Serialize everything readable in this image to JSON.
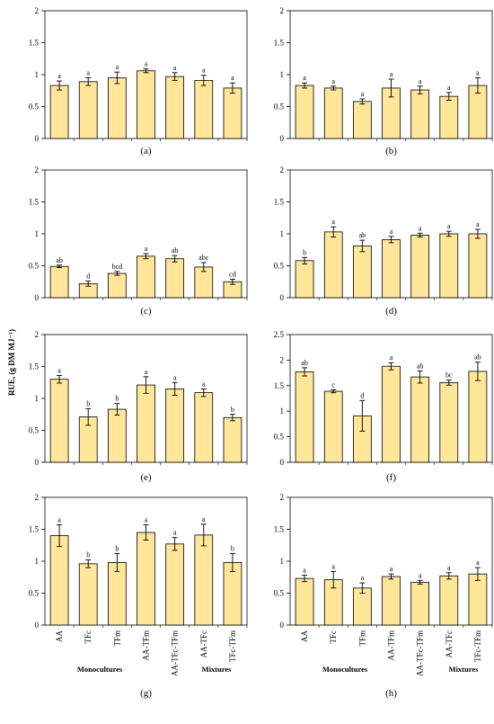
{
  "ylabel": "RUE, (g DM MJ⁻¹)",
  "group_labels": [
    "Monocultures",
    "Mixtures"
  ],
  "chart_data": [
    {
      "type": "bar",
      "panel": "(a)",
      "categories": [
        "AA",
        "TFc",
        "TFm",
        "AA-TFm",
        "AA-TFc-TFm",
        "AA-TFc",
        "TFc-TFm"
      ],
      "values": [
        0.83,
        0.89,
        0.95,
        1.06,
        0.97,
        0.91,
        0.79
      ],
      "errors": [
        0.07,
        0.06,
        0.09,
        0.03,
        0.06,
        0.08,
        0.08
      ],
      "letters": [
        "a",
        "a",
        "a",
        "a",
        "a",
        "a",
        "a"
      ],
      "ylim": [
        0,
        2
      ],
      "yticks": [
        "0",
        "0.5",
        "1",
        "1.5",
        "2"
      ],
      "show_categories": false
    },
    {
      "type": "bar",
      "panel": "(b)",
      "categories": [
        "AA",
        "TFc",
        "TFm",
        "AA-TFm",
        "AA-TFc-TFm",
        "AA-TFc",
        "TFc-TFm"
      ],
      "values": [
        0.83,
        0.79,
        0.58,
        0.79,
        0.76,
        0.66,
        0.83
      ],
      "errors": [
        0.04,
        0.03,
        0.04,
        0.14,
        0.06,
        0.06,
        0.12
      ],
      "letters": [
        "a",
        "a",
        "a",
        "a",
        "a",
        "a",
        "a"
      ],
      "ylim": [
        0,
        2
      ],
      "yticks": [
        "0",
        "0.5",
        "1",
        "1.5",
        "2"
      ],
      "show_categories": false
    },
    {
      "type": "bar",
      "panel": "(c)",
      "categories": [
        "AA",
        "TFc",
        "TFm",
        "AA-TFm",
        "AA-TFc-TFm",
        "AA-TFc",
        "TFc-TFm"
      ],
      "values": [
        0.49,
        0.22,
        0.38,
        0.65,
        0.61,
        0.48,
        0.25
      ],
      "errors": [
        0.02,
        0.04,
        0.03,
        0.04,
        0.05,
        0.07,
        0.04
      ],
      "letters": [
        "ab",
        "d",
        "bcd",
        "a",
        "ab",
        "abc",
        "cd"
      ],
      "ylim": [
        0,
        2
      ],
      "yticks": [
        "0",
        "0.5",
        "1",
        "1.5",
        "2"
      ],
      "show_categories": false
    },
    {
      "type": "bar",
      "panel": "(d)",
      "categories": [
        "AA",
        "TFc",
        "TFm",
        "AA-TFm",
        "AA-TFc-TFm",
        "AA-TFc",
        "TFc-TFm"
      ],
      "values": [
        0.58,
        1.03,
        0.81,
        0.91,
        0.98,
        1.0,
        1.0
      ],
      "errors": [
        0.05,
        0.08,
        0.09,
        0.05,
        0.03,
        0.04,
        0.07
      ],
      "letters": [
        "b",
        "a",
        "ab",
        "a",
        "a",
        "a",
        "a"
      ],
      "ylim": [
        0,
        2
      ],
      "yticks": [
        "0",
        "0.5",
        "1",
        "1.5",
        "2"
      ],
      "show_categories": false
    },
    {
      "type": "bar",
      "panel": "(e)",
      "categories": [
        "AA",
        "TFc",
        "TFm",
        "AA-TFm",
        "AA-TFc-TFm",
        "AA-TFc",
        "TFc-TFm"
      ],
      "values": [
        1.3,
        0.71,
        0.83,
        1.21,
        1.15,
        1.09,
        0.7
      ],
      "errors": [
        0.06,
        0.13,
        0.09,
        0.13,
        0.1,
        0.06,
        0.05
      ],
      "letters": [
        "a",
        "b",
        "b",
        "a",
        "a",
        "a",
        "b"
      ],
      "ylim": [
        0,
        2
      ],
      "yticks": [
        "0",
        "0.5",
        "1",
        "1.5",
        "2"
      ],
      "show_categories": false
    },
    {
      "type": "bar",
      "panel": "(f)",
      "categories": [
        "AA",
        "TFc",
        "TFm",
        "AA-TFm",
        "AA-TFc-TFm",
        "AA-TFc",
        "TFc-TFm"
      ],
      "values": [
        1.77,
        1.39,
        0.91,
        1.88,
        1.67,
        1.56,
        1.78
      ],
      "errors": [
        0.08,
        0.03,
        0.3,
        0.07,
        0.12,
        0.05,
        0.18
      ],
      "letters": [
        "ab",
        "c",
        "d",
        "a",
        "ab",
        "bc",
        "ab"
      ],
      "ylim": [
        0,
        2.5
      ],
      "yticks": [
        "0",
        "0.5",
        "1",
        "1.5",
        "2",
        "2.5"
      ],
      "show_categories": false
    },
    {
      "type": "bar",
      "panel": "(g)",
      "categories": [
        "AA",
        "TFc",
        "TFm",
        "AA-TFm",
        "AA-TFc-TFm",
        "AA-TFc",
        "TFc-TFm"
      ],
      "values": [
        1.4,
        0.96,
        0.98,
        1.45,
        1.27,
        1.41,
        0.98
      ],
      "errors": [
        0.17,
        0.06,
        0.14,
        0.12,
        0.1,
        0.17,
        0.14
      ],
      "letters": [
        "a",
        "b",
        "b",
        "a",
        "a",
        "a",
        "b"
      ],
      "ylim": [
        0,
        2
      ],
      "yticks": [
        "0",
        "0.5",
        "1",
        "1.5",
        "2"
      ],
      "show_categories": true
    },
    {
      "type": "bar",
      "panel": "(h)",
      "categories": [
        "AA",
        "TFc",
        "TFm",
        "AA-TFm",
        "AA-TFc-TFm",
        "AA-TFc",
        "TFc-TFm"
      ],
      "values": [
        0.73,
        0.71,
        0.58,
        0.76,
        0.67,
        0.77,
        0.8
      ],
      "errors": [
        0.05,
        0.13,
        0.08,
        0.04,
        0.03,
        0.05,
        0.1
      ],
      "letters": [
        "a",
        "a",
        "a",
        "a",
        "a",
        "a",
        "a"
      ],
      "ylim": [
        0,
        2
      ],
      "yticks": [
        "0",
        "0.5",
        "1",
        "1.5",
        "2"
      ],
      "show_categories": true
    }
  ],
  "colors": {
    "bar_fill": "#ffe699",
    "bar_stroke": "#000000"
  }
}
